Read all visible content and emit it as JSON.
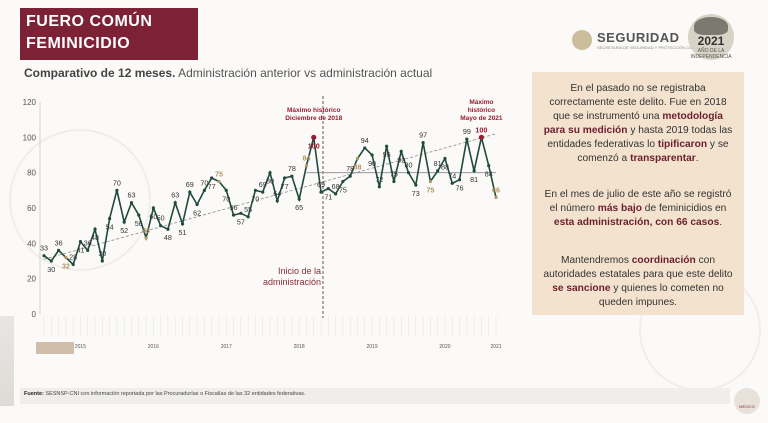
{
  "title": {
    "line1": "FUERO COMÚN",
    "line2": "FEMINICIDIO"
  },
  "subtitle": {
    "bold": "Comparativo de 12 meses.",
    "rest": " Administración anterior vs administración actual"
  },
  "logos": {
    "seguridad_word": "SEGURIDAD",
    "seguridad_sub": "SECRETARÍA DE SEGURIDAD Y PROTECCIÓN CIUDADANA",
    "year": "2021",
    "year_small": "AÑO DE LA INDEPENDENCIA",
    "gob_seal": "MÉXICO"
  },
  "chart_data": {
    "type": "line",
    "ylim": [
      0,
      120
    ],
    "yticks": [
      0,
      20,
      40,
      60,
      80,
      100,
      120
    ],
    "grid": false,
    "years": [
      "2015",
      "2016",
      "2017",
      "2018",
      "2019",
      "2020",
      "2021"
    ],
    "values": [
      33,
      30,
      36,
      32,
      28,
      41,
      36,
      48,
      30,
      54,
      70,
      52,
      63,
      56,
      43,
      60,
      50,
      48,
      63,
      51,
      69,
      62,
      70,
      77,
      75,
      70,
      56,
      57,
      55,
      70,
      69,
      80,
      64,
      77,
      78,
      65,
      84,
      100,
      69,
      71,
      68,
      75,
      78,
      88,
      94,
      90,
      72,
      95,
      75,
      92,
      80,
      73,
      97,
      75,
      81,
      88,
      74,
      76,
      99,
      81,
      100,
      84,
      66
    ],
    "labels": [
      "33",
      "30",
      "36",
      "32",
      "28",
      "41",
      "36",
      "48",
      "30",
      "54",
      "70",
      "52",
      "63",
      "56",
      "43",
      "60",
      "50",
      "48",
      "63",
      "51",
      "69",
      "62",
      "70",
      "77",
      "75",
      "70",
      "56",
      "57",
      "55",
      "70",
      "69",
      "80",
      "64",
      "77",
      "78",
      "65",
      "84",
      "100",
      "69",
      "71",
      "68",
      "75",
      "78",
      "88",
      "94",
      "90",
      "72",
      "95",
      "75",
      "92",
      "80",
      "73",
      "97",
      "75",
      "81",
      "88",
      "74",
      "76",
      "99",
      "81",
      "100",
      "84",
      "66"
    ],
    "highlight_indices": [
      3,
      14,
      24,
      36,
      43,
      53,
      62
    ],
    "max_indices": [
      37,
      60
    ],
    "admin_start_index": 47,
    "admin_label": [
      "Inicio de la",
      "administración"
    ],
    "annotations": [
      {
        "text": [
          "Máximo histórico",
          "Diciembre de 2018"
        ],
        "index": 37
      },
      {
        "text": [
          "Máximo",
          "histórico",
          "Mayo de 2021"
        ],
        "index": 60
      }
    ]
  },
  "panel": {
    "p1_a": "En el pasado no se registraba correctamente este delito. Fue en 2018 que se instrumentó una ",
    "p1_b": "metodología para su medición",
    "p1_c": " y hasta 2019 todas las entidades federativas lo ",
    "p1_d": "tipificaron",
    "p1_e": " y se comenzó a ",
    "p1_f": "transparentar",
    "p1_g": ".",
    "p2_a": "En el mes de julio de este año se registró el número ",
    "p2_b": "más bajo",
    "p2_c": " de feminicidios en ",
    "p2_d": "esta administración, con 66 casos",
    "p2_e": ".",
    "p3_a": "Mantendremos ",
    "p3_b": "coordinación",
    "p3_c": " con autoridades estatales para que este delito ",
    "p3_d": "se sancione",
    "p3_e": " y quienes lo cometen no queden impunes."
  },
  "footer": {
    "label": "Fuente:",
    "text": " SESNSP-CNI con información reportada por las Procuradurías o Fiscalías de las 32 entidades federativas."
  },
  "colors": {
    "title_bg": "#7d2236",
    "line": "#1f4a3c",
    "highlight": "#b29462",
    "max": "#9b1b30",
    "trend": "#8a8a8a",
    "panel_bg": "#f3e2ce"
  }
}
